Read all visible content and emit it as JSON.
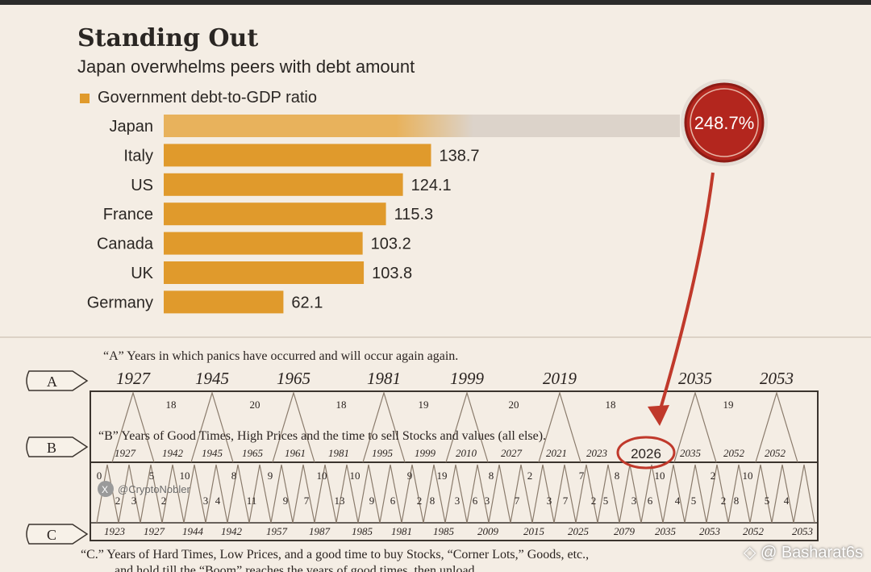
{
  "header": {
    "title": "Standing Out",
    "subtitle": "Japan overwhelms peers with debt amount",
    "legend": "Government debt-to-GDP ratio"
  },
  "colors": {
    "bar": "#e09a2c",
    "bar_fade": "#d9d2cb",
    "callout": "#b3261e",
    "arrow": "#c0392b"
  },
  "chart_data": {
    "type": "bar",
    "orientation": "horizontal",
    "title": "Standing Out",
    "subtitle": "Japan overwhelms peers with debt amount",
    "legend": [
      "Government debt-to-GDP ratio"
    ],
    "categories": [
      "Japan",
      "Italy",
      "US",
      "France",
      "Canada",
      "UK",
      "Germany"
    ],
    "values": [
      248.7,
      138.7,
      124.1,
      115.3,
      103.2,
      103.8,
      62.1
    ],
    "labels": [
      "248.7%",
      "138.7",
      "124.1",
      "115.3",
      "103.2",
      "103.8",
      "62.1"
    ],
    "callout": "248.7%"
  },
  "panic_chart": {
    "note_a": "“A” Years in which panics have occurred and will occur again again.",
    "note_b": "“B” Years of Good Times, High Prices and the time to sell Stocks and values (all else).",
    "note_c1": "“C.” Years of Hard Times, Low Prices, and a good time to buy Stocks, “Corner Lots,” Goods, etc.,",
    "note_c2": "and hold till the “Boom” reaches the years of good times, then unload.",
    "marker_a": "A",
    "marker_b": "B",
    "marker_c": "C",
    "row_a_years": [
      "1927",
      "1945",
      "1965",
      "1981",
      "1999",
      "2019",
      "2035",
      "2053"
    ],
    "row_a_intervals": [
      "18",
      "20",
      "18",
      "19",
      "20",
      "18",
      "19"
    ],
    "row_b_years": [
      "1927",
      "1942",
      "1945",
      "1965",
      "1961",
      "1981",
      "1995",
      "1999",
      "2010",
      "2027",
      "2021",
      "2023",
      "2026",
      "2035",
      "2052",
      "2052"
    ],
    "highlight_year": "2026",
    "row_c_years": [
      "1923",
      "1927",
      "1944",
      "1942",
      "1957",
      "1987",
      "1985",
      "1981",
      "1985",
      "2009",
      "2015",
      "2025",
      "2079",
      "2035",
      "2053",
      "2052",
      "2053"
    ],
    "top_nums": [
      "0",
      "5",
      "10",
      "8",
      "9",
      "10",
      "10",
      "9",
      "19",
      "8",
      "2",
      "7",
      "8",
      "10",
      "2",
      "10"
    ],
    "bottom_nums": [
      "2",
      "3",
      "2",
      "3",
      "4",
      "11",
      "9",
      "7",
      "13",
      "9",
      "6",
      "2",
      "8",
      "3",
      "6",
      "3",
      "7",
      "3",
      "7",
      "2",
      "5",
      "3",
      "6",
      "4",
      "5",
      "2",
      "8",
      "5",
      "4"
    ],
    "watermark": "@CryptoNobler"
  },
  "credit": "◇ @ Basharat6s"
}
